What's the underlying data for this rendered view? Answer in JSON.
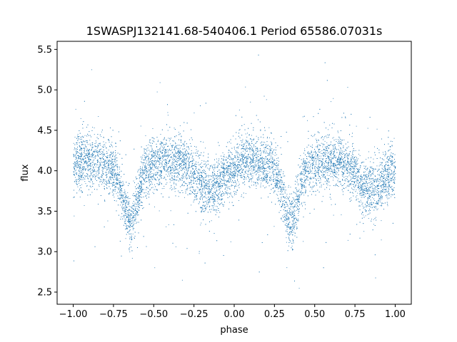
{
  "chart_data": {
    "type": "scatter",
    "title": "1SWASPJ132141.68-540406.1 Period 65586.07031s",
    "xlabel": "phase",
    "ylabel": "flux",
    "xlim": [
      -1.1,
      1.1
    ],
    "ylim": [
      2.35,
      5.6
    ],
    "xticks": [
      -1.0,
      -0.75,
      -0.5,
      -0.25,
      0.0,
      0.25,
      0.5,
      0.75,
      1.0
    ],
    "xtick_labels": [
      "−1.00",
      "−0.75",
      "−0.50",
      "−0.25",
      "0.00",
      "0.25",
      "0.50",
      "0.75",
      "1.00"
    ],
    "yticks": [
      2.5,
      3.0,
      3.5,
      4.0,
      4.5,
      5.0,
      5.5
    ],
    "ytick_labels": [
      "2.5",
      "3.0",
      "3.5",
      "4.0",
      "4.5",
      "5.0",
      "5.5"
    ],
    "grid": false,
    "legend": "none",
    "series": [
      {
        "color": "#1f77b4",
        "baseline_flux": 4.05,
        "primary_minimum": {
          "phases": [
            -0.65,
            0.35
          ],
          "flux": 3.4
        },
        "secondary_minimum": {
          "phases": [
            -0.15,
            0.85
          ],
          "flux": 3.75
        },
        "maximum_phases": [
          -0.9,
          -0.4,
          0.1,
          0.6
        ],
        "scatter_spread": 0.3,
        "x_range": [
          -1.0,
          1.0
        ]
      }
    ]
  }
}
